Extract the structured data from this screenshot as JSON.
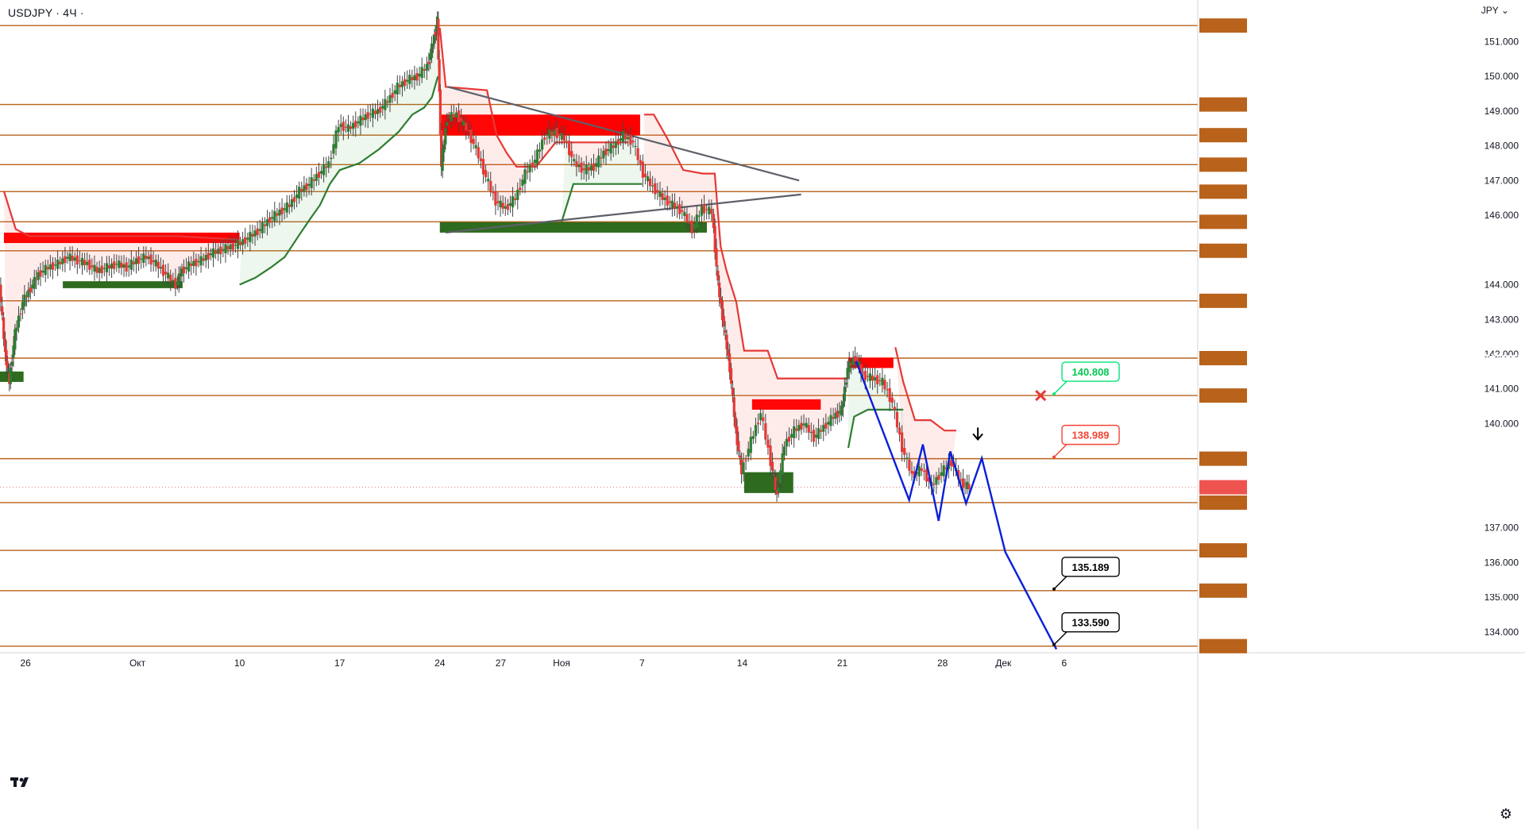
{
  "header": {
    "symbol": "USDJPY",
    "sep1": "·",
    "interval": "4Ч",
    "sep2": "·",
    "currency": "JPY"
  },
  "colors": {
    "level_line": "#b8621b",
    "bull": "#2e7d32",
    "bear": "#e53935",
    "projection": "#0a1fd8",
    "trendline": "#5d6068"
  },
  "icons": {
    "logo": "tradingview-logo-icon",
    "settings": "gear-icon",
    "currency_menu": "chevron-down-icon"
  },
  "chart_data": {
    "type": "line",
    "title": "USDJPY · 4Ч ·",
    "ylim": [
      133.4,
      152.2
    ],
    "xlim": [
      0,
      61
    ],
    "x_ticks": [
      {
        "x": 1.3,
        "label": "26"
      },
      {
        "x": 7.0,
        "label": "Окт"
      },
      {
        "x": 12.2,
        "label": "10"
      },
      {
        "x": 17.3,
        "label": "17"
      },
      {
        "x": 22.4,
        "label": "24"
      },
      {
        "x": 25.5,
        "label": "27"
      },
      {
        "x": 28.6,
        "label": "Ноя"
      },
      {
        "x": 32.7,
        "label": "7"
      },
      {
        "x": 37.8,
        "label": "14"
      },
      {
        "x": 42.9,
        "label": "21"
      },
      {
        "x": 48.0,
        "label": "28"
      },
      {
        "x": 51.1,
        "label": "Дек"
      },
      {
        "x": 54.2,
        "label": "6"
      }
    ],
    "y_ticks": [
      151.0,
      150.0,
      149.0,
      148.0,
      147.0,
      146.0,
      144.0,
      143.0,
      142.0,
      141.0,
      140.0,
      137.0,
      136.0,
      135.0,
      134.0
    ],
    "levels": [
      "151.464",
      "149.190",
      "148.307",
      "147.458",
      "146.680",
      "145.811",
      "144.978",
      "143.536",
      "141.885",
      "140.808",
      "138.989",
      "137.724",
      "136.348",
      "135.189",
      "133.590"
    ],
    "current_price": "138.167",
    "price": [
      [
        0.0,
        144.0
      ],
      [
        0.3,
        142.0
      ],
      [
        0.5,
        141.2
      ],
      [
        0.8,
        142.6
      ],
      [
        1.2,
        143.5
      ],
      [
        1.6,
        143.9
      ],
      [
        2.0,
        144.3
      ],
      [
        2.5,
        144.5
      ],
      [
        3.0,
        144.6
      ],
      [
        3.5,
        144.8
      ],
      [
        4.0,
        144.7
      ],
      [
        4.5,
        144.6
      ],
      [
        5.0,
        144.4
      ],
      [
        5.5,
        144.5
      ],
      [
        6.0,
        144.6
      ],
      [
        6.5,
        144.5
      ],
      [
        7.0,
        144.7
      ],
      [
        7.5,
        144.8
      ],
      [
        8.0,
        144.6
      ],
      [
        8.5,
        144.3
      ],
      [
        9.0,
        144.0
      ],
      [
        9.3,
        144.4
      ],
      [
        9.8,
        144.6
      ],
      [
        10.3,
        144.7
      ],
      [
        10.8,
        144.9
      ],
      [
        11.3,
        145.0
      ],
      [
        11.8,
        145.1
      ],
      [
        12.3,
        145.2
      ],
      [
        12.8,
        145.4
      ],
      [
        13.3,
        145.6
      ],
      [
        13.8,
        145.9
      ],
      [
        14.3,
        146.1
      ],
      [
        14.8,
        146.3
      ],
      [
        15.3,
        146.7
      ],
      [
        15.8,
        146.9
      ],
      [
        16.3,
        147.2
      ],
      [
        16.8,
        147.5
      ],
      [
        17.3,
        148.6
      ],
      [
        17.8,
        148.5
      ],
      [
        18.3,
        148.7
      ],
      [
        18.8,
        148.9
      ],
      [
        19.3,
        149.0
      ],
      [
        19.8,
        149.3
      ],
      [
        20.3,
        149.7
      ],
      [
        20.8,
        149.9
      ],
      [
        21.3,
        150.0
      ],
      [
        21.8,
        150.3
      ],
      [
        22.1,
        151.0
      ],
      [
        22.3,
        151.6
      ],
      [
        22.5,
        147.4
      ],
      [
        22.8,
        148.8
      ],
      [
        23.3,
        148.9
      ],
      [
        23.8,
        148.5
      ],
      [
        24.3,
        147.9
      ],
      [
        24.8,
        147.1
      ],
      [
        25.3,
        146.4
      ],
      [
        25.8,
        146.2
      ],
      [
        26.3,
        146.5
      ],
      [
        26.8,
        147.2
      ],
      [
        27.3,
        147.6
      ],
      [
        27.8,
        148.3
      ],
      [
        28.3,
        148.4
      ],
      [
        28.8,
        148.2
      ],
      [
        29.3,
        147.5
      ],
      [
        29.8,
        147.3
      ],
      [
        30.3,
        147.4
      ],
      [
        30.8,
        147.8
      ],
      [
        31.3,
        148.0
      ],
      [
        31.8,
        148.3
      ],
      [
        32.3,
        148.1
      ],
      [
        32.8,
        147.2
      ],
      [
        33.3,
        146.8
      ],
      [
        33.8,
        146.5
      ],
      [
        34.3,
        146.3
      ],
      [
        34.8,
        146.1
      ],
      [
        35.3,
        145.6
      ],
      [
        35.8,
        146.2
      ],
      [
        36.3,
        146.1
      ],
      [
        36.6,
        144.0
      ],
      [
        36.9,
        142.8
      ],
      [
        37.2,
        141.6
      ],
      [
        37.5,
        139.8
      ],
      [
        37.8,
        138.6
      ],
      [
        38.3,
        139.5
      ],
      [
        38.8,
        140.3
      ],
      [
        39.3,
        138.9
      ],
      [
        39.6,
        137.9
      ],
      [
        40.0,
        139.4
      ],
      [
        40.5,
        139.8
      ],
      [
        41.0,
        140.0
      ],
      [
        41.5,
        139.6
      ],
      [
        42.0,
        139.9
      ],
      [
        42.5,
        140.2
      ],
      [
        42.9,
        140.4
      ],
      [
        43.2,
        141.6
      ],
      [
        43.6,
        141.9
      ],
      [
        44.0,
        141.4
      ],
      [
        44.5,
        141.3
      ],
      [
        45.0,
        141.2
      ],
      [
        45.5,
        140.6
      ],
      [
        46.0,
        139.3
      ],
      [
        46.5,
        138.5
      ],
      [
        47.0,
        138.7
      ],
      [
        47.5,
        138.2
      ],
      [
        48.0,
        138.6
      ],
      [
        48.5,
        138.9
      ],
      [
        49.0,
        138.3
      ],
      [
        49.4,
        138.167
      ]
    ],
    "supertrend_up": [
      [
        [
          12.2,
          144.0
        ],
        [
          13.0,
          144.2
        ],
        [
          13.8,
          144.5
        ],
        [
          14.5,
          144.8
        ],
        [
          15.2,
          145.4
        ],
        [
          15.8,
          145.9
        ],
        [
          16.3,
          146.3
        ],
        [
          16.8,
          146.9
        ],
        [
          17.3,
          147.3
        ],
        [
          18.3,
          147.5
        ],
        [
          19.3,
          147.9
        ],
        [
          20.3,
          148.4
        ],
        [
          21.0,
          148.9
        ],
        [
          21.6,
          149.1
        ],
        [
          22.0,
          149.4
        ],
        [
          22.3,
          150.0
        ]
      ],
      [
        [
          28.6,
          145.8
        ],
        [
          29.2,
          146.9
        ],
        [
          30.2,
          146.9
        ],
        [
          31.2,
          146.9
        ],
        [
          32.2,
          146.9
        ],
        [
          32.7,
          146.9
        ]
      ],
      [
        [
          43.2,
          139.3
        ],
        [
          43.5,
          140.2
        ],
        [
          44.2,
          140.4
        ],
        [
          45.2,
          140.4
        ],
        [
          46.0,
          140.4
        ]
      ]
    ],
    "supertrend_down": [
      [
        [
          0.2,
          146.7
        ],
        [
          0.8,
          145.6
        ],
        [
          1.5,
          145.4
        ],
        [
          5.0,
          145.4
        ],
        [
          9.0,
          145.4
        ],
        [
          12.2,
          145.3
        ]
      ],
      [
        [
          22.4,
          151.4
        ],
        [
          22.7,
          149.7
        ],
        [
          24.8,
          149.6
        ],
        [
          25.3,
          148.3
        ],
        [
          25.8,
          147.8
        ],
        [
          26.3,
          147.4
        ],
        [
          27.3,
          147.4
        ],
        [
          28.3,
          148.1
        ],
        [
          29.3,
          148.1
        ],
        [
          31.0,
          148.1
        ],
        [
          32.0,
          148.1
        ]
      ],
      [
        [
          32.8,
          148.9
        ],
        [
          33.3,
          148.9
        ],
        [
          34.0,
          148.2
        ],
        [
          34.8,
          147.3
        ],
        [
          35.8,
          147.2
        ],
        [
          36.4,
          147.2
        ],
        [
          36.7,
          145.1
        ],
        [
          37.0,
          144.4
        ],
        [
          37.5,
          143.5
        ],
        [
          37.9,
          142.1
        ],
        [
          39.1,
          142.1
        ],
        [
          39.6,
          141.3
        ],
        [
          41.5,
          141.3
        ],
        [
          43.2,
          141.3
        ]
      ],
      [
        [
          45.6,
          142.2
        ],
        [
          46.0,
          141.2
        ],
        [
          46.6,
          140.1
        ],
        [
          47.4,
          140.1
        ],
        [
          48.1,
          139.8
        ],
        [
          48.7,
          139.8
        ]
      ]
    ],
    "zones_supply": [
      [
        0.2,
        12.2,
        145.5,
        145.2
      ],
      [
        22.4,
        32.6,
        148.9,
        148.3
      ],
      [
        38.3,
        41.8,
        140.7,
        140.4
      ],
      [
        43.2,
        45.5,
        141.9,
        141.6
      ]
    ],
    "zones_demand": [
      [
        3.2,
        9.3,
        144.1,
        143.9
      ],
      [
        22.4,
        36.0,
        145.8,
        145.5
      ],
      [
        0.0,
        1.2,
        141.5,
        141.2
      ],
      [
        37.9,
        40.4,
        138.6,
        138.0
      ]
    ],
    "trendlines": [
      [
        [
          22.8,
          149.7
        ],
        [
          40.7,
          147.0
        ]
      ],
      [
        [
          22.7,
          145.5
        ],
        [
          40.8,
          146.6
        ]
      ]
    ],
    "projection": [
      [
        43.6,
        141.8
      ],
      [
        46.3,
        137.8
      ],
      [
        47.0,
        139.4
      ],
      [
        47.8,
        137.2
      ],
      [
        48.4,
        139.2
      ],
      [
        49.2,
        137.7
      ],
      [
        50.0,
        139.0
      ],
      [
        51.2,
        136.3
      ],
      [
        53.8,
        133.5
      ]
    ],
    "labels": [
      {
        "x": 53.6,
        "y": 140.808,
        "text": "140.808",
        "style": "green-outline"
      },
      {
        "x": 53.6,
        "y": 138.989,
        "text": "138.989",
        "style": "red-outline"
      },
      {
        "x": 53.6,
        "y": 135.189,
        "text": "135.189",
        "style": "black-outline"
      },
      {
        "x": 53.6,
        "y": 133.59,
        "text": "133.590",
        "style": "black-outline"
      }
    ],
    "markers": [
      {
        "x": 53.0,
        "y": 140.808,
        "symbol": "cross-icon",
        "color": "#e53935"
      },
      {
        "x": 49.8,
        "y": 139.2,
        "symbol": "arrow-down-icon",
        "color": "#000000"
      }
    ]
  }
}
